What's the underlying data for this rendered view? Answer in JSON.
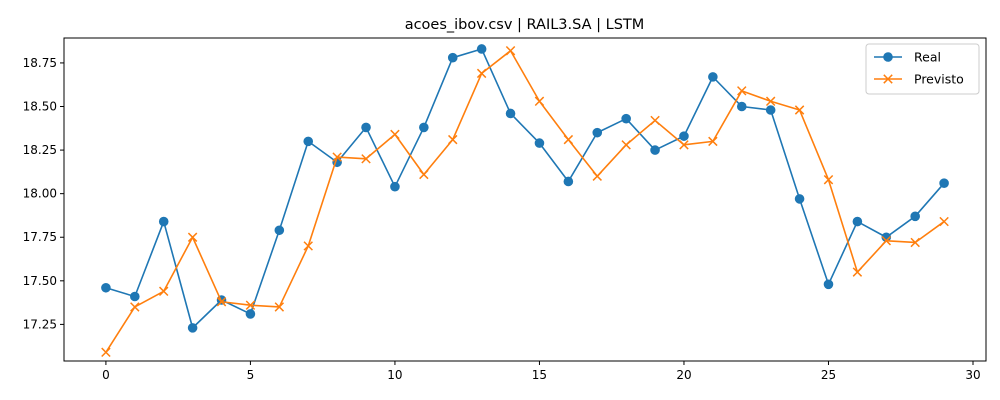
{
  "chart_data": {
    "type": "line",
    "title": "acoes_ibov.csv | RAIL3.SA | LSTM",
    "xlabel": "",
    "ylabel": "",
    "xlim": [
      -1.45,
      30.45
    ],
    "ylim": [
      17.04,
      18.893
    ],
    "xticks": [
      0,
      5,
      10,
      15,
      20,
      25,
      30
    ],
    "yticks": [
      17.25,
      17.5,
      17.75,
      18.0,
      18.25,
      18.5,
      18.75
    ],
    "ytick_labels": [
      "17.25",
      "17.50",
      "17.75",
      "18.00",
      "18.25",
      "18.50",
      "18.75"
    ],
    "xtick_labels": [
      "0",
      "5",
      "10",
      "15",
      "20",
      "25",
      "30"
    ],
    "grid": false,
    "legend_position": "top-right",
    "x": [
      0,
      1,
      2,
      3,
      4,
      5,
      6,
      7,
      8,
      9,
      10,
      11,
      12,
      13,
      14,
      15,
      16,
      17,
      18,
      19,
      20,
      21,
      22,
      23,
      24,
      25,
      26,
      27,
      28,
      29
    ],
    "series": [
      {
        "name": "Real",
        "color": "#1f77b4",
        "marker": "circle",
        "values": [
          17.46,
          17.41,
          17.84,
          17.23,
          17.39,
          17.31,
          17.79,
          18.3,
          18.18,
          18.38,
          18.04,
          18.38,
          18.78,
          18.83,
          18.46,
          18.29,
          18.07,
          18.35,
          18.43,
          18.25,
          18.33,
          18.67,
          18.5,
          18.48,
          17.97,
          17.48,
          17.84,
          17.75,
          17.87,
          18.06
        ]
      },
      {
        "name": "Previsto",
        "color": "#ff7f0e",
        "marker": "x",
        "values": [
          17.09,
          17.35,
          17.44,
          17.75,
          17.38,
          17.36,
          17.35,
          17.7,
          18.21,
          18.2,
          18.34,
          18.11,
          18.31,
          18.69,
          18.82,
          18.53,
          18.31,
          18.1,
          18.28,
          18.42,
          18.28,
          18.3,
          18.59,
          18.53,
          18.48,
          18.08,
          17.55,
          17.73,
          17.72,
          17.84
        ]
      }
    ]
  }
}
